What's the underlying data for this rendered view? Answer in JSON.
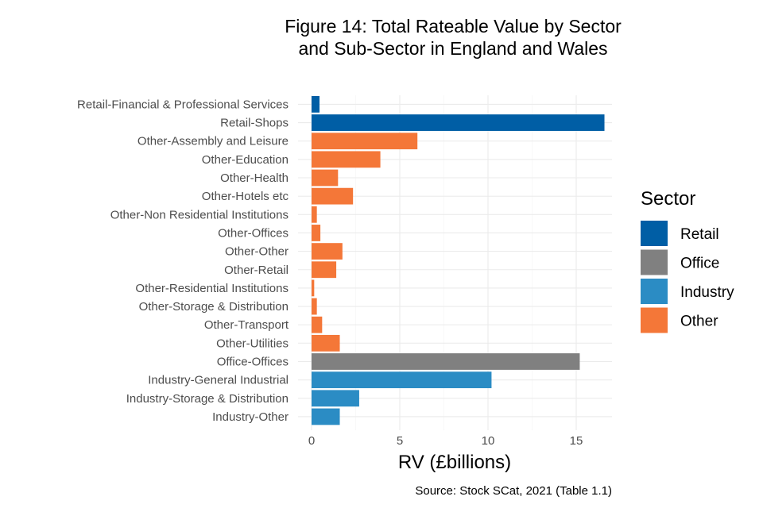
{
  "chart_data": {
    "type": "bar",
    "orientation": "horizontal",
    "title": [
      "Figure 14: Total Rateable Value by Sector",
      "and Sub-Sector in England and Wales"
    ],
    "xlabel": "RV (£billions)",
    "ylabel": "",
    "xlim": [
      0,
      17
    ],
    "xticks": [
      0,
      5,
      10,
      15
    ],
    "grid": true,
    "caption": "Source: Stock SCat, 2021 (Table 1.1)",
    "legend": {
      "title": "Sector",
      "position": "right",
      "entries": [
        {
          "name": "Retail",
          "color": "#005EA5"
        },
        {
          "name": "Office",
          "color": "#808080"
        },
        {
          "name": "Industry",
          "color": "#2B8CC4"
        },
        {
          "name": "Other",
          "color": "#F47738"
        }
      ]
    },
    "bars": [
      {
        "category": "Retail-Financial & Professional Services",
        "sector": "Retail",
        "value": 0.45
      },
      {
        "category": "Retail-Shops",
        "sector": "Retail",
        "value": 16.6
      },
      {
        "category": "Other-Assembly and Leisure",
        "sector": "Other",
        "value": 6.0
      },
      {
        "category": "Other-Education",
        "sector": "Other",
        "value": 3.9
      },
      {
        "category": "Other-Health",
        "sector": "Other",
        "value": 1.5
      },
      {
        "category": "Other-Hotels etc",
        "sector": "Other",
        "value": 2.35
      },
      {
        "category": "Other-Non Residential Institutions",
        "sector": "Other",
        "value": 0.3
      },
      {
        "category": "Other-Offices",
        "sector": "Other",
        "value": 0.5
      },
      {
        "category": "Other-Other",
        "sector": "Other",
        "value": 1.75
      },
      {
        "category": "Other-Retail",
        "sector": "Other",
        "value": 1.4
      },
      {
        "category": "Other-Residential Institutions",
        "sector": "Other",
        "value": 0.15
      },
      {
        "category": "Other-Storage & Distribution",
        "sector": "Other",
        "value": 0.3
      },
      {
        "category": "Other-Transport",
        "sector": "Other",
        "value": 0.6
      },
      {
        "category": "Other-Utilities",
        "sector": "Other",
        "value": 1.6
      },
      {
        "category": "Office-Offices",
        "sector": "Office",
        "value": 15.2
      },
      {
        "category": "Industry-General Industrial",
        "sector": "Industry",
        "value": 10.2
      },
      {
        "category": "Industry-Storage & Distribution",
        "sector": "Industry",
        "value": 2.7
      },
      {
        "category": "Industry-Other",
        "sector": "Industry",
        "value": 1.6
      }
    ]
  }
}
